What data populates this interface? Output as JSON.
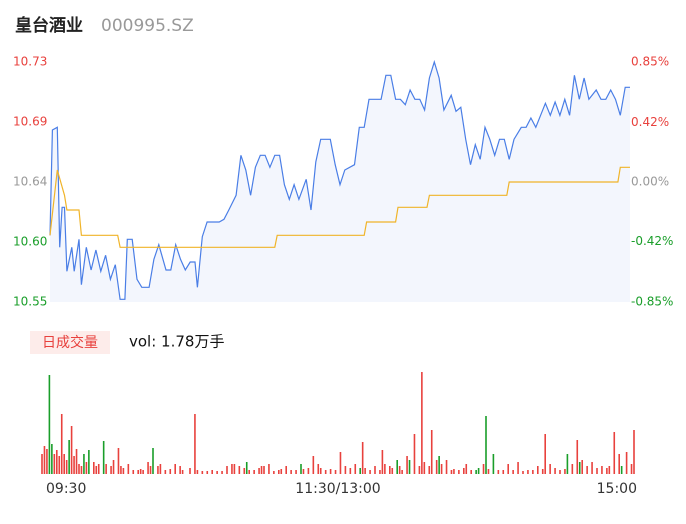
{
  "chart_data": [
    {
      "type": "line",
      "title": "皇台酒业",
      "subtitle": "000995.SZ",
      "xlim": [
        0,
        240
      ],
      "ylim": [
        10.55,
        10.73
      ],
      "yticks": [
        {
          "value": 10.73,
          "label": "10.73"
        },
        {
          "value": 10.685,
          "label": "10.69"
        },
        {
          "value": 10.64,
          "label": "10.64"
        },
        {
          "value": 10.595,
          "label": "10.60"
        },
        {
          "value": 10.55,
          "label": "10.55"
        }
      ],
      "y2lim": [
        -0.85,
        0.85
      ],
      "y2ticks": [
        {
          "value": 0.85,
          "label": "0.85%"
        },
        {
          "value": 0.42,
          "label": "0.42%"
        },
        {
          "value": 0,
          "label": "0.00%"
        },
        {
          "value": -0.42,
          "label": "-0.42%"
        },
        {
          "value": -0.85,
          "label": "-0.85%"
        }
      ],
      "up_color": "#e8413d",
      "down_color": "#1a9e2a",
      "flat_color": "#999999",
      "area_color": "#f3f6fd",
      "series": [
        {
          "color": "#4a7ee6",
          "x": [
            0,
            1,
            3,
            4,
            5,
            6,
            7,
            9,
            10,
            12,
            13,
            15,
            17,
            19,
            21,
            23,
            25,
            27,
            29,
            31,
            32,
            34,
            36,
            38,
            41,
            43,
            45,
            48,
            50,
            52,
            54,
            56,
            58,
            60,
            61,
            63,
            65,
            70,
            72,
            74,
            77,
            79,
            81,
            83,
            85,
            87,
            89,
            91,
            93,
            95,
            97,
            99,
            101,
            103,
            106,
            108,
            110,
            112,
            116,
            118,
            120,
            122,
            126,
            128,
            130,
            132,
            134,
            137,
            139,
            141,
            143,
            145,
            147,
            149,
            151,
            153,
            155,
            157,
            159,
            161,
            163,
            166,
            168,
            170,
            172,
            174,
            176,
            178,
            180,
            182,
            184,
            186,
            188,
            190,
            192,
            195,
            197,
            199,
            201,
            203,
            205,
            207,
            209,
            211,
            213,
            215,
            217,
            219,
            221,
            223,
            226,
            228,
            230,
            232,
            234,
            236,
            238,
            240
          ],
          "values": [
            10.6,
            10.679,
            10.681,
            10.591,
            10.621,
            10.621,
            10.573,
            10.591,
            10.573,
            10.597,
            10.563,
            10.591,
            10.574,
            10.589,
            10.573,
            10.585,
            10.567,
            10.578,
            10.552,
            10.552,
            10.597,
            10.597,
            10.567,
            10.561,
            10.561,
            10.582,
            10.593,
            10.574,
            10.574,
            10.593,
            10.582,
            10.574,
            10.58,
            10.58,
            10.561,
            10.599,
            10.61,
            10.61,
            10.612,
            10.619,
            10.63,
            10.66,
            10.649,
            10.63,
            10.651,
            10.66,
            10.66,
            10.651,
            10.66,
            10.66,
            10.638,
            10.627,
            10.638,
            10.627,
            10.642,
            10.619,
            10.655,
            10.672,
            10.672,
            10.653,
            10.638,
            10.649,
            10.653,
            10.681,
            10.681,
            10.702,
            10.702,
            10.702,
            10.72,
            10.72,
            10.702,
            10.702,
            10.698,
            10.709,
            10.702,
            10.702,
            10.694,
            10.718,
            10.73,
            10.718,
            10.694,
            10.705,
            10.693,
            10.696,
            10.672,
            10.653,
            10.668,
            10.657,
            10.681,
            10.672,
            10.66,
            10.672,
            10.672,
            10.657,
            10.672,
            10.681,
            10.681,
            10.688,
            10.681,
            10.69,
            10.699,
            10.69,
            10.7,
            10.69,
            10.702,
            10.69,
            10.72,
            10.702,
            10.718,
            10.702,
            10.709,
            10.702,
            10.702,
            10.709,
            10.702,
            10.69,
            10.711,
            10.711
          ]
        },
        {
          "color": "#f0b429",
          "x": [
            0,
            3,
            6,
            7,
            12,
            13,
            28,
            29,
            93,
            94,
            130,
            131,
            143,
            144,
            156,
            157,
            189,
            190,
            235,
            236,
            240
          ],
          "values": [
            10.6,
            10.649,
            10.63,
            10.619,
            10.619,
            10.6,
            10.6,
            10.591,
            10.591,
            10.6,
            10.6,
            10.61,
            10.61,
            10.621,
            10.621,
            10.63,
            10.63,
            10.64,
            10.64,
            10.651,
            10.651
          ]
        }
      ]
    },
    {
      "type": "bar",
      "title": "日成交量",
      "annotation": "vol: 1.78万手",
      "xlim": [
        0,
        240
      ],
      "xticks": [
        {
          "value": 0,
          "label": "09:30"
        },
        {
          "value": 120,
          "label": "11:30/13:00"
        },
        {
          "value": 240,
          "label": "15:00"
        }
      ],
      "ylim": [
        0,
        105
      ],
      "x": [
        0,
        1,
        2,
        3,
        4,
        5,
        6,
        7,
        8,
        9,
        10,
        11,
        12,
        13,
        14,
        15,
        16,
        17,
        18,
        19,
        21,
        22,
        23,
        25,
        26,
        28,
        29,
        31,
        32,
        33,
        35,
        37,
        39,
        40,
        41,
        43,
        44,
        45,
        47,
        48,
        50,
        52,
        54,
        56,
        57,
        60,
        62,
        63,
        65,
        67,
        69,
        71,
        73,
        75,
        77,
        78,
        80,
        82,
        83,
        84,
        86,
        88,
        89,
        90,
        92,
        94,
        96,
        97,
        99,
        101,
        103,
        105,
        106,
        108,
        110,
        112,
        113,
        115,
        117,
        119,
        121,
        123,
        125,
        127,
        129,
        130,
        131,
        133,
        135,
        137,
        138,
        139,
        141,
        142,
        144,
        145,
        146,
        148,
        149,
        151,
        153,
        154,
        155,
        157,
        158,
        160,
        161,
        162,
        164,
        166,
        167,
        169,
        171,
        172,
        174,
        176,
        177,
        179,
        180,
        181,
        183,
        185,
        187,
        189,
        191,
        193,
        195,
        197,
        199,
        201,
        203,
        204,
        206,
        208,
        210,
        212,
        213,
        215,
        217,
        218,
        219,
        221,
        223,
        225,
        227,
        229,
        230,
        232,
        234,
        235,
        237,
        239,
        240
      ],
      "values": [
        20,
        28,
        25,
        99,
        30,
        20,
        24,
        18,
        60,
        20,
        14,
        34,
        48,
        18,
        25,
        10,
        8,
        20,
        12,
        24,
        12,
        8,
        10,
        33,
        10,
        8,
        14,
        26,
        8,
        6,
        10,
        4,
        4,
        5,
        4,
        12,
        8,
        26,
        8,
        10,
        4,
        5,
        10,
        8,
        4,
        6,
        60,
        4,
        3,
        3,
        4,
        3,
        3,
        8,
        10,
        10,
        8,
        6,
        12,
        4,
        4,
        6,
        8,
        8,
        10,
        3,
        4,
        5,
        8,
        4,
        4,
        10,
        5,
        6,
        18,
        10,
        6,
        4,
        5,
        4,
        22,
        8,
        6,
        10,
        6,
        32,
        6,
        4,
        8,
        4,
        24,
        10,
        8,
        6,
        14,
        8,
        4,
        18,
        14,
        40,
        8,
        102,
        12,
        8,
        44,
        14,
        18,
        10,
        14,
        4,
        5,
        4,
        6,
        10,
        4,
        4,
        6,
        10,
        58,
        5,
        20,
        4,
        4,
        10,
        4,
        12,
        3,
        4,
        4,
        8,
        5,
        40,
        10,
        6,
        4,
        5,
        20,
        10,
        34,
        12,
        14,
        8,
        12,
        6,
        8,
        6,
        8,
        42,
        20,
        8,
        22,
        10,
        44
      ],
      "colors": [
        "#e8413d",
        "#e8413d",
        "#e8413d",
        "#1a9e2a",
        "#1a9e2a",
        "#e8413d",
        "#e8413d",
        "#e8413d",
        "#e8413d",
        "#e8413d",
        "#e8413d",
        "#1a9e2a",
        "#e8413d",
        "#e8413d",
        "#e8413d",
        "#e8413d",
        "#e8413d",
        "#1a9e2a",
        "#e8413d",
        "#1a9e2a",
        "#e8413d",
        "#e8413d",
        "#e8413d",
        "#1a9e2a",
        "#e8413d",
        "#e8413d",
        "#e8413d",
        "#e8413d",
        "#e8413d",
        "#e8413d",
        "#e8413d",
        "#e8413d",
        "#e8413d",
        "#e8413d",
        "#e8413d",
        "#e8413d",
        "#e8413d",
        "#1a9e2a",
        "#e8413d",
        "#e8413d",
        "#e8413d",
        "#e8413d",
        "#e8413d",
        "#e8413d",
        "#e8413d",
        "#e8413d",
        "#e8413d",
        "#e8413d",
        "#e8413d",
        "#e8413d",
        "#e8413d",
        "#e8413d",
        "#e8413d",
        "#e8413d",
        "#e8413d",
        "#e8413d",
        "#e8413d",
        "#e8413d",
        "#1a9e2a",
        "#e8413d",
        "#e8413d",
        "#e8413d",
        "#e8413d",
        "#e8413d",
        "#e8413d",
        "#e8413d",
        "#e8413d",
        "#e8413d",
        "#e8413d",
        "#e8413d",
        "#e8413d",
        "#1a9e2a",
        "#e8413d",
        "#e8413d",
        "#e8413d",
        "#e8413d",
        "#e8413d",
        "#e8413d",
        "#e8413d",
        "#e8413d",
        "#e8413d",
        "#e8413d",
        "#e8413d",
        "#e8413d",
        "#1a9e2a",
        "#e8413d",
        "#e8413d",
        "#e8413d",
        "#e8413d",
        "#e8413d",
        "#e8413d",
        "#e8413d",
        "#e8413d",
        "#e8413d",
        "#1a9e2a",
        "#e8413d",
        "#e8413d",
        "#e8413d",
        "#1a9e2a",
        "#e8413d",
        "#e8413d",
        "#e8413d",
        "#e8413d",
        "#e8413d",
        "#e8413d",
        "#e8413d",
        "#1a9e2a",
        "#e8413d",
        "#e8413d",
        "#e8413d",
        "#e8413d",
        "#e8413d",
        "#e8413d",
        "#e8413d",
        "#e8413d",
        "#1a9e2a",
        "#1a9e2a",
        "#e8413d",
        "#1a9e2a",
        "#e8413d",
        "#1a9e2a",
        "#e8413d",
        "#e8413d",
        "#e8413d",
        "#e8413d",
        "#e8413d",
        "#e8413d",
        "#e8413d",
        "#e8413d",
        "#e8413d",
        "#e8413d",
        "#e8413d",
        "#e8413d",
        "#e8413d",
        "#e8413d",
        "#e8413d",
        "#1a9e2a",
        "#e8413d",
        "#e8413d",
        "#1a9e2a",
        "#e8413d",
        "#e8413d",
        "#e8413d",
        "#e8413d",
        "#e8413d",
        "#e8413d",
        "#e8413d",
        "#e8413d",
        "#e8413d",
        "#1a9e2a",
        "#e8413d",
        "#e8413d",
        "#e8413d",
        "#f4a3a3"
      ],
      "label_bg": "#fdecea"
    }
  ]
}
